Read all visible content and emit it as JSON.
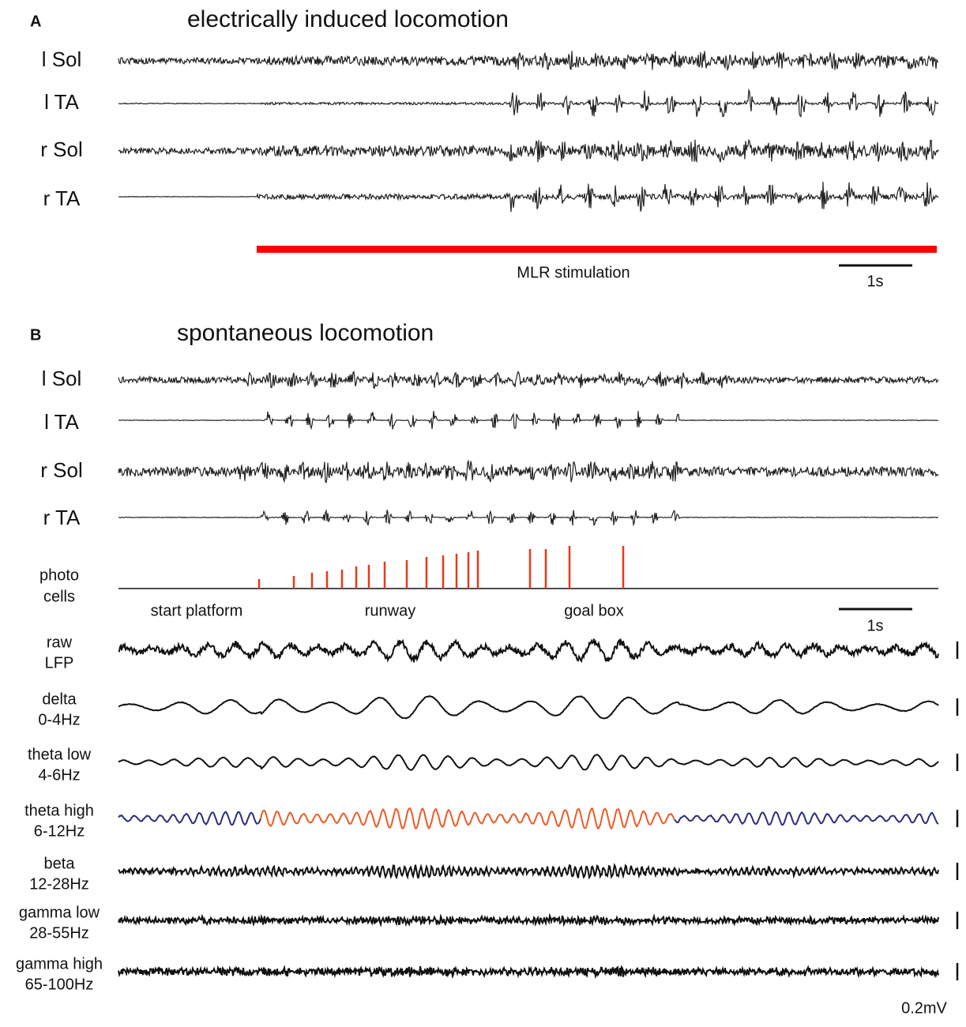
{
  "panel_a": {
    "label": "A",
    "title": "electrically induced locomotion",
    "channels": [
      "l Sol",
      "l TA",
      "r Sol",
      "r TA"
    ],
    "stimulation_label": "MLR stimulation",
    "scale_label": "1s"
  },
  "panel_b": {
    "label": "B",
    "title": "spontaneous locomotion",
    "channels": [
      "l Sol",
      "l TA",
      "r Sol",
      "r TA"
    ],
    "photo_label": [
      "photo",
      "cells"
    ],
    "phases": [
      "start platform",
      "runway",
      "goal box"
    ],
    "scale_label": "1s",
    "bands": [
      [
        "raw",
        "LFP"
      ],
      [
        "delta",
        "0-4Hz"
      ],
      [
        "theta low",
        "4-6Hz"
      ],
      [
        "theta high",
        "6-12Hz"
      ],
      [
        "beta",
        "12-28Hz"
      ],
      [
        "gamma low",
        "28-55Hz"
      ],
      [
        "gamma high",
        "65-100Hz"
      ]
    ],
    "amplitude_scale": "0.2mV"
  }
}
